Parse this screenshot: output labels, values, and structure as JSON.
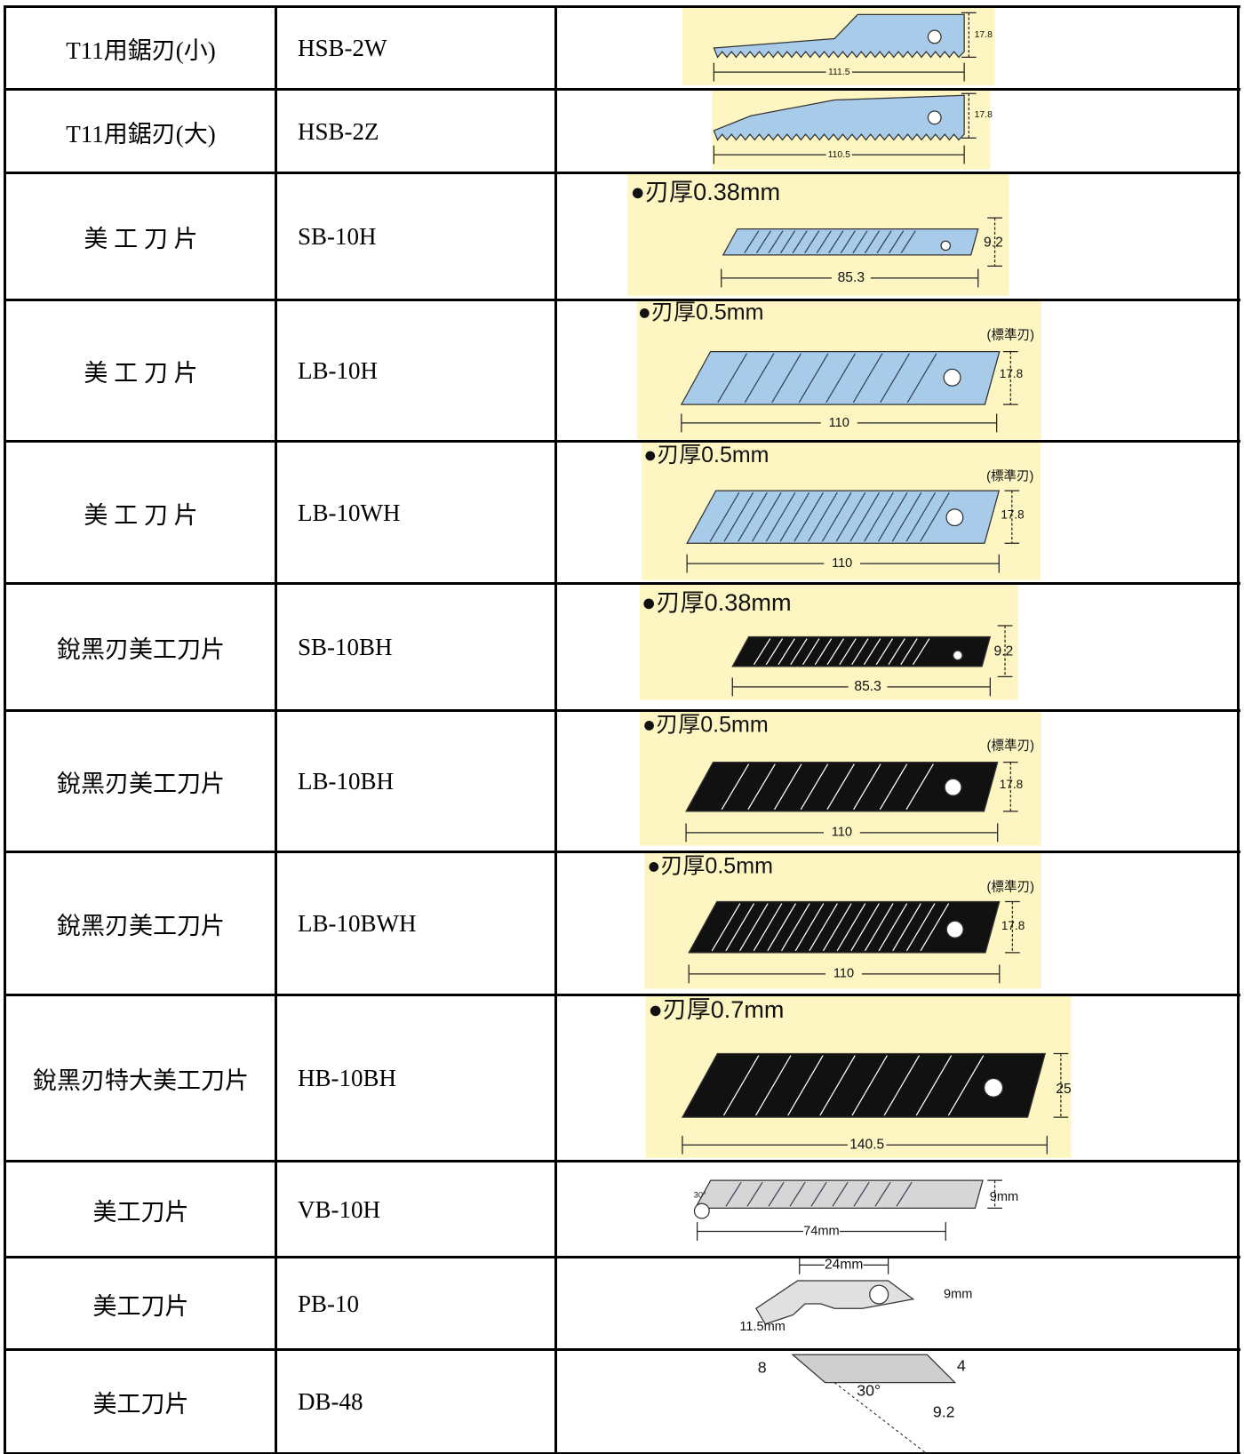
{
  "table": {
    "rows": [
      {
        "name": "T11用鋸刃(小)",
        "code": "HSB-2W",
        "labels": [
          "17.8",
          "111.5"
        ]
      },
      {
        "name": "T11用鋸刃(大)",
        "code": "HSB-2Z",
        "labels": [
          "17.8",
          "110.5"
        ]
      },
      {
        "name": "美 工 刀 片",
        "code": "SB-10H",
        "labels": [
          "●刃厚0.38mm",
          "9.2",
          "85.3"
        ]
      },
      {
        "name": "美 工 刀 片",
        "code": "LB-10H",
        "labels": [
          "●刃厚0.5mm",
          "(標準刃)",
          "17.8",
          "110"
        ]
      },
      {
        "name": "美 工 刀 片",
        "code": "LB-10WH",
        "labels": [
          "●刃厚0.5mm",
          "(標準刃)",
          "17.8",
          "110"
        ]
      },
      {
        "name": "銳黑刃美工刀片",
        "code": "SB-10BH",
        "labels": [
          "●刃厚0.38mm",
          "9.2",
          "85.3"
        ]
      },
      {
        "name": "銳黑刃美工刀片",
        "code": "LB-10BH",
        "labels": [
          "●刃厚0.5mm",
          "(標準刃)",
          "17.8",
          "110"
        ]
      },
      {
        "name": "銳黑刃美工刀片",
        "code": "LB-10BWH",
        "labels": [
          "●刃厚0.5mm",
          "(標準刃)",
          "17.8",
          "110"
        ]
      },
      {
        "name": "銳黑刃特大美工刀片",
        "code": "HB-10BH",
        "labels": [
          "●刃厚0.7mm",
          "25",
          "140.5"
        ]
      },
      {
        "name": "美工刀片",
        "code": "VB-10H",
        "labels": [
          "30°",
          "9mm",
          "74mm"
        ]
      },
      {
        "name": "美工刀片",
        "code": "PB-10",
        "labels": [
          "24mm",
          "9mm",
          "11.5mm"
        ]
      },
      {
        "name": "美工刀片",
        "code": "DB-48",
        "labels": [
          "8",
          "4",
          "30°",
          "9.2"
        ]
      }
    ]
  }
}
